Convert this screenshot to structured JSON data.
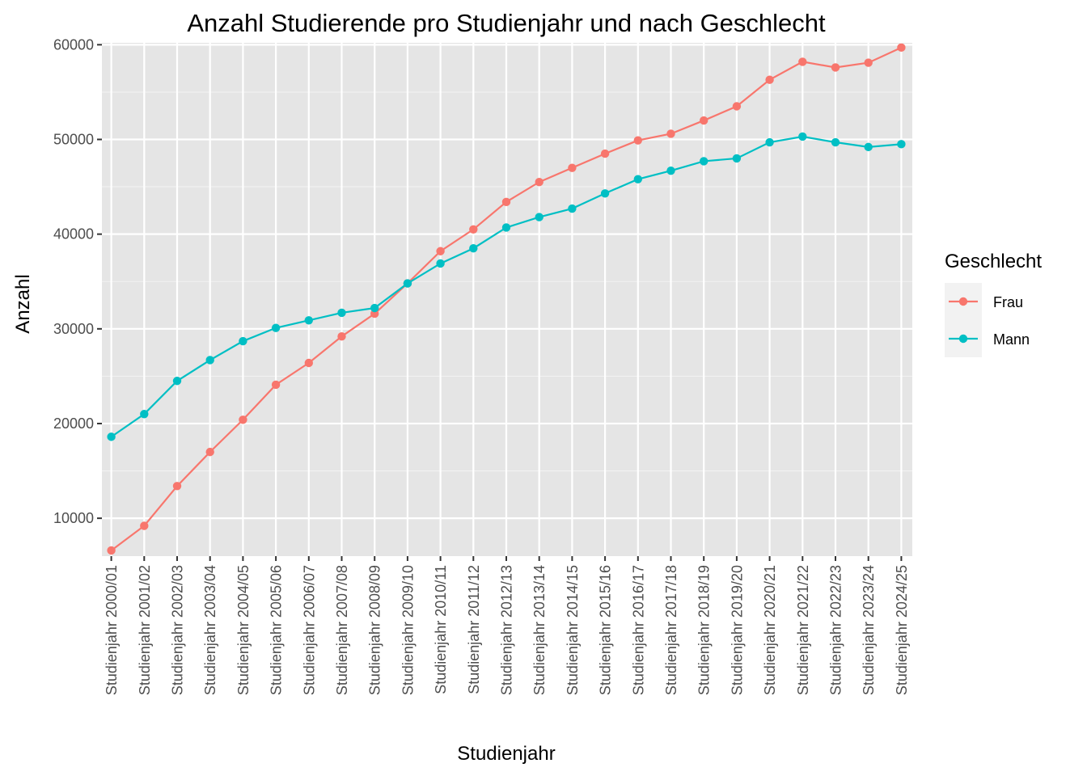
{
  "chart_data": {
    "type": "line",
    "title": "Anzahl Studierende pro Studienjahr und nach Geschlecht",
    "xlabel": "Studienjahr",
    "ylabel": "Anzahl",
    "ylim": [
      6000,
      60200
    ],
    "yticks": [
      10000,
      20000,
      30000,
      40000,
      50000,
      60000
    ],
    "grid": true,
    "background": "#e5e5e5",
    "legend": {
      "title": "Geschlecht",
      "placement": "right"
    },
    "categories": [
      "Studienjahr 2000/01",
      "Studienjahr 2001/02",
      "Studienjahr 2002/03",
      "Studienjahr 2003/04",
      "Studienjahr 2004/05",
      "Studienjahr 2005/06",
      "Studienjahr 2006/07",
      "Studienjahr 2007/08",
      "Studienjahr 2008/09",
      "Studienjahr 2009/10",
      "Studienjahr 2010/11",
      "Studienjahr 2011/12",
      "Studienjahr 2012/13",
      "Studienjahr 2013/14",
      "Studienjahr 2014/15",
      "Studienjahr 2015/16",
      "Studienjahr 2016/17",
      "Studienjahr 2017/18",
      "Studienjahr 2018/19",
      "Studienjahr 2019/20",
      "Studienjahr 2020/21",
      "Studienjahr 2021/22",
      "Studienjahr 2022/23",
      "Studienjahr 2023/24",
      "Studienjahr 2024/25"
    ],
    "series": [
      {
        "name": "Frau",
        "color": "#f8766d",
        "values": [
          6600,
          9200,
          13400,
          17000,
          20400,
          24100,
          26400,
          29200,
          31600,
          34800,
          38200,
          40500,
          43400,
          45500,
          47000,
          48500,
          49900,
          50600,
          52000,
          53500,
          56300,
          58200,
          57600,
          58100,
          59700
        ]
      },
      {
        "name": "Mann",
        "color": "#00bfc4",
        "values": [
          18600,
          21000,
          24500,
          26700,
          28700,
          30100,
          30900,
          31700,
          32200,
          34800,
          36900,
          38500,
          40700,
          41800,
          42700,
          44300,
          45800,
          46700,
          47700,
          48000,
          49700,
          50300,
          49700,
          49200,
          49500
        ]
      }
    ]
  }
}
